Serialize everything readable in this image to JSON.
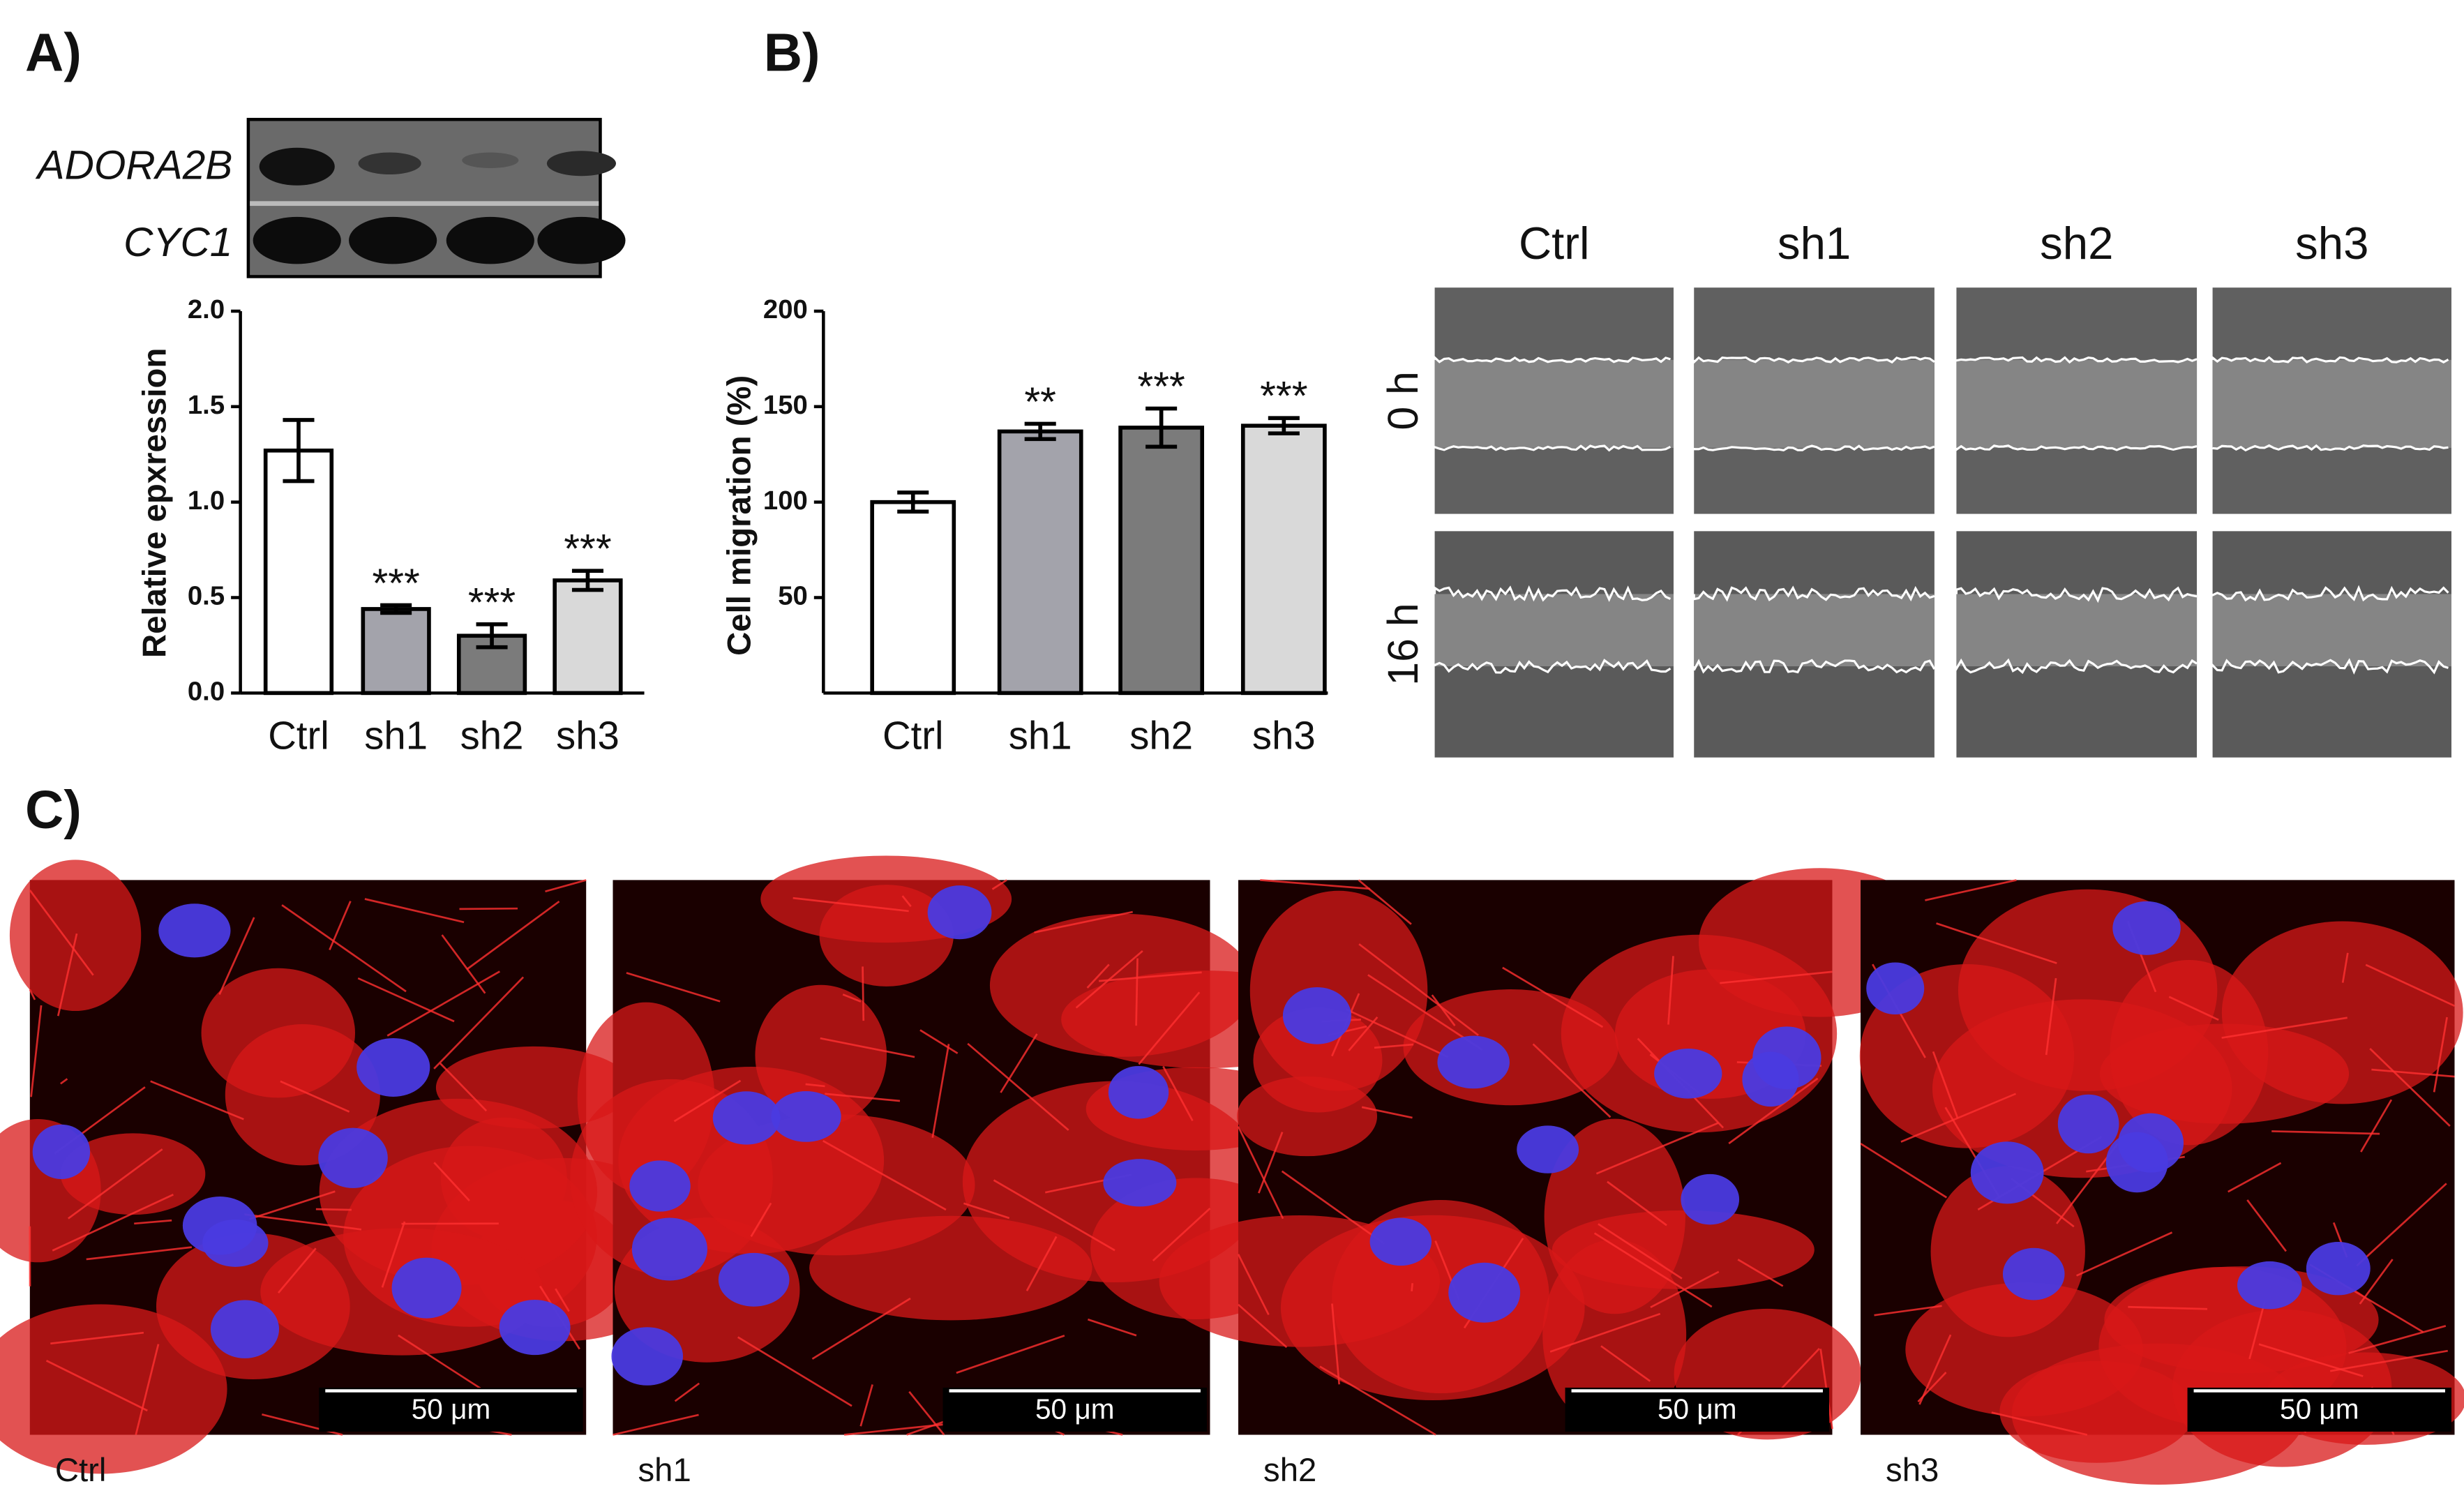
{
  "panels": {
    "a": "A)",
    "b": "B)",
    "c": "C)"
  },
  "gel": {
    "labels": [
      "ADORA2B",
      "CYC1"
    ]
  },
  "chart_data": [
    {
      "type": "bar",
      "y_label": "Relative epxression",
      "categories": [
        "Ctrl",
        "sh1",
        "sh2",
        "sh3"
      ],
      "values": [
        1.27,
        0.44,
        0.3,
        0.59
      ],
      "errors": [
        0.16,
        0.02,
        0.06,
        0.05
      ],
      "annotations": [
        null,
        "***",
        "***",
        "***"
      ],
      "colors": [
        "#ffffff",
        "#a3a3ab",
        "#7b7b7b",
        "#d9d9d9"
      ],
      "ylim": [
        0,
        2.0
      ],
      "yticks": [
        {
          "value": 0,
          "label": "0.0"
        },
        0.5,
        {
          "value": 1,
          "label": "1.0"
        },
        1.5,
        {
          "value": 2,
          "label": "2.0"
        }
      ]
    },
    {
      "type": "bar",
      "y_label": "Cell migration (%)",
      "categories": [
        "Ctrl",
        "sh1",
        "sh2",
        "sh3"
      ],
      "values": [
        100,
        137,
        139,
        140
      ],
      "errors": [
        5,
        4,
        10,
        4
      ],
      "annotations": [
        null,
        "**",
        "***",
        "***"
      ],
      "colors": [
        "#ffffff",
        "#a3a3ab",
        "#7b7b7b",
        "#d9d9d9"
      ],
      "ylim": [
        0,
        200
      ],
      "yticks": [
        50,
        100,
        150,
        200
      ]
    }
  ],
  "scratch": {
    "columns": [
      "Ctrl",
      "sh1",
      "sh2",
      "sh3"
    ],
    "rows": [
      "0 h",
      "16 h"
    ]
  },
  "fluorescence": {
    "captions": [
      "Ctrl",
      "sh1",
      "sh2",
      "sh3"
    ],
    "scale_bar": "50 μm"
  }
}
